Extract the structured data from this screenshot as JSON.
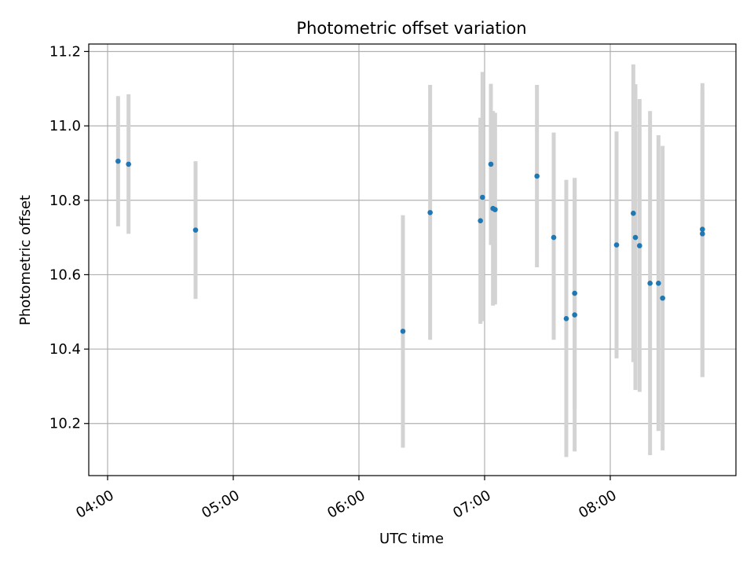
{
  "chart_data": {
    "type": "scatter",
    "title": "Photometric offset variation",
    "xlabel": "UTC time",
    "ylabel": "Photometric offset",
    "x_tick_labels": [
      "04:00",
      "05:00",
      "06:00",
      "07:00",
      "08:00"
    ],
    "x_tick_values": [
      "04:00",
      "05:00",
      "06:00",
      "07:00",
      "08:00"
    ],
    "y_tick_labels": [
      "10.2",
      "10.4",
      "10.6",
      "10.8",
      "11.0",
      "11.2"
    ],
    "y_tick_values": [
      10.2,
      10.4,
      10.6,
      10.8,
      11.0,
      11.2
    ],
    "xlim": [
      "03:51",
      "09:00"
    ],
    "ylim": [
      10.06,
      11.22
    ],
    "grid": true,
    "colors": {
      "point": "#1f77b4",
      "errorbar": "#d3d3d3",
      "grid": "#b0b0b0"
    },
    "points": [
      {
        "x": "04:05",
        "y": 10.905,
        "yerr_low": 10.73,
        "yerr_high": 11.08
      },
      {
        "x": "04:10",
        "y": 10.897,
        "yerr_low": 10.71,
        "yerr_high": 11.085
      },
      {
        "x": "04:42",
        "y": 10.72,
        "yerr_low": 10.535,
        "yerr_high": 10.905
      },
      {
        "x": "06:21",
        "y": 10.448,
        "yerr_low": 10.135,
        "yerr_high": 10.76
      },
      {
        "x": "06:34",
        "y": 10.767,
        "yerr_low": 10.425,
        "yerr_high": 11.11
      },
      {
        "x": "06:58",
        "y": 10.745,
        "yerr_low": 10.468,
        "yerr_high": 11.022
      },
      {
        "x": "06:59",
        "y": 10.808,
        "yerr_low": 10.475,
        "yerr_high": 11.145
      },
      {
        "x": "07:03",
        "y": 10.897,
        "yerr_low": 10.68,
        "yerr_high": 11.113
      },
      {
        "x": "07:04",
        "y": 10.778,
        "yerr_low": 10.517,
        "yerr_high": 11.04
      },
      {
        "x": "07:05",
        "y": 10.775,
        "yerr_low": 10.52,
        "yerr_high": 11.035
      },
      {
        "x": "07:25",
        "y": 10.865,
        "yerr_low": 10.62,
        "yerr_high": 11.11
      },
      {
        "x": "07:33",
        "y": 10.7,
        "yerr_low": 10.425,
        "yerr_high": 10.982
      },
      {
        "x": "07:39",
        "y": 10.482,
        "yerr_low": 10.11,
        "yerr_high": 10.855
      },
      {
        "x": "07:43",
        "y": 10.55,
        "yerr_low": 10.24,
        "yerr_high": 10.86
      },
      {
        "x": "07:43",
        "y": 10.492,
        "yerr_low": 10.125,
        "yerr_high": 10.86
      },
      {
        "x": "08:03",
        "y": 10.68,
        "yerr_low": 10.375,
        "yerr_high": 10.985
      },
      {
        "x": "08:11",
        "y": 10.765,
        "yerr_low": 10.365,
        "yerr_high": 11.165
      },
      {
        "x": "08:12",
        "y": 10.7,
        "yerr_low": 10.29,
        "yerr_high": 11.112
      },
      {
        "x": "08:14",
        "y": 10.678,
        "yerr_low": 10.285,
        "yerr_high": 11.072
      },
      {
        "x": "08:19",
        "y": 10.577,
        "yerr_low": 10.115,
        "yerr_high": 11.04
      },
      {
        "x": "08:23",
        "y": 10.577,
        "yerr_low": 10.18,
        "yerr_high": 10.975
      },
      {
        "x": "08:25",
        "y": 10.537,
        "yerr_low": 10.128,
        "yerr_high": 10.946
      },
      {
        "x": "08:44",
        "y": 10.722,
        "yerr_low": 10.325,
        "yerr_high": 11.115
      },
      {
        "x": "08:44",
        "y": 10.71,
        "yerr_low": 10.325,
        "yerr_high": 11.095
      }
    ]
  }
}
